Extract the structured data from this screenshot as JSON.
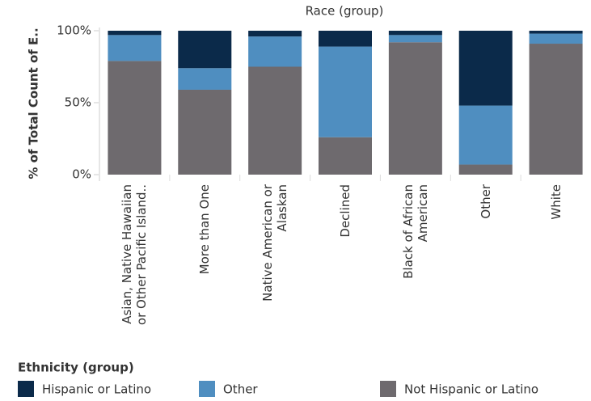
{
  "chart_data": {
    "type": "stacked_bar_100",
    "title": "Race (group)",
    "y_label": "% of Total Count of E..",
    "legend_title": "Ethnicity (group)",
    "categories": [
      "Asian, Native Hawaiian or Other Pacific Island..",
      "More than One",
      "Native American or Alaskan",
      "Declined",
      "Black of African American",
      "Other",
      "White"
    ],
    "series": [
      {
        "name": "Hispanic or Latino",
        "color": "#0b2a4a",
        "values": [
          3,
          26,
          4,
          11,
          3,
          52,
          2
        ]
      },
      {
        "name": "Other",
        "color": "#4f8ec0",
        "values": [
          18,
          15,
          21,
          63,
          5,
          41,
          7
        ]
      },
      {
        "name": "Not Hispanic or Latino",
        "color": "#6e6a6e",
        "values": [
          79,
          59,
          75,
          26,
          92,
          7,
          91
        ]
      }
    ],
    "ylim": [
      0,
      100
    ],
    "yticks": [
      {
        "value": 0,
        "label": "0%"
      },
      {
        "value": 50,
        "label": "50%"
      },
      {
        "value": 100,
        "label": "100%"
      }
    ]
  }
}
